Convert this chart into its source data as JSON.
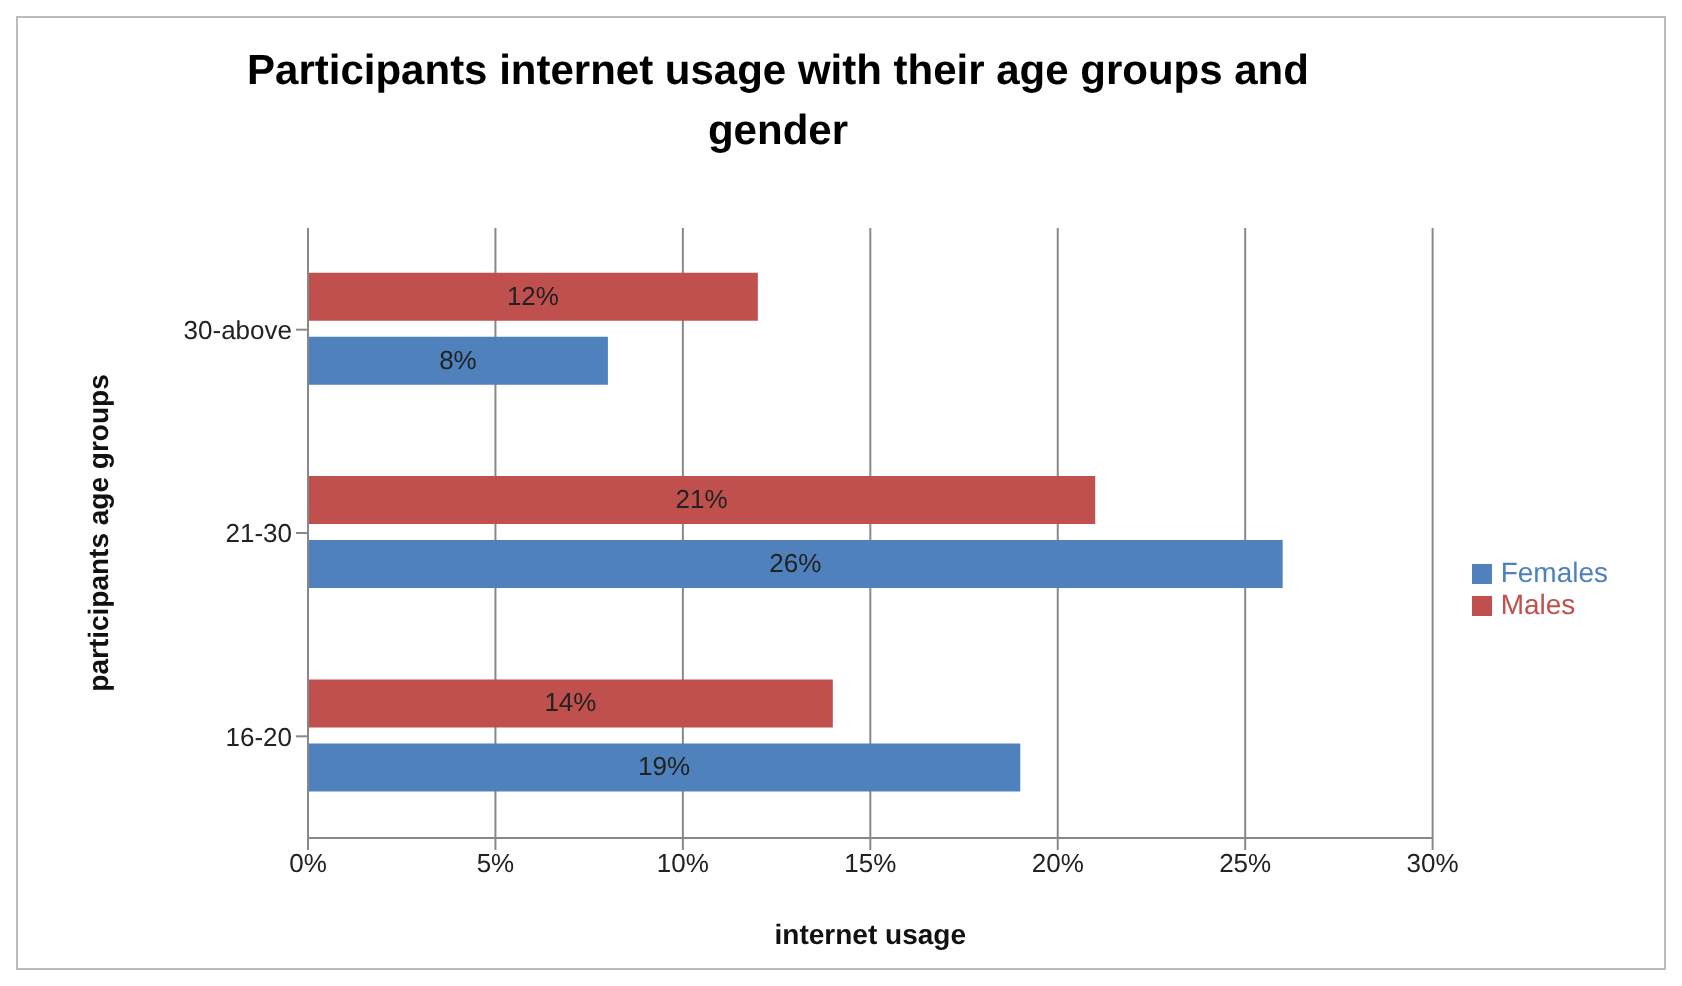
{
  "chart_data": {
    "type": "bar",
    "orientation": "horizontal",
    "title": "Participants internet usage with their age groups and gender",
    "xlabel": "internet usage",
    "ylabel": "participants age groups",
    "categories": [
      "30-above",
      "21-30",
      "16-20"
    ],
    "series": [
      {
        "name": "Males",
        "color": "#c0504d",
        "values": [
          12,
          21,
          14
        ],
        "value_labels": [
          "12%",
          "21%",
          "14%"
        ]
      },
      {
        "name": "Females",
        "color": "#4f81bd",
        "values": [
          8,
          26,
          19
        ],
        "value_labels": [
          "8%",
          "26%",
          "19%"
        ]
      }
    ],
    "xlim": [
      0,
      30
    ],
    "xticks": [
      {
        "value": 0,
        "label": "0%"
      },
      {
        "value": 5,
        "label": "5%"
      },
      {
        "value": 10,
        "label": "10%"
      },
      {
        "value": 15,
        "label": "15%"
      },
      {
        "value": 20,
        "label": "20%"
      },
      {
        "value": 25,
        "label": "25%"
      },
      {
        "value": 30,
        "label": "30%"
      }
    ],
    "grid": "x",
    "legend": "right"
  }
}
